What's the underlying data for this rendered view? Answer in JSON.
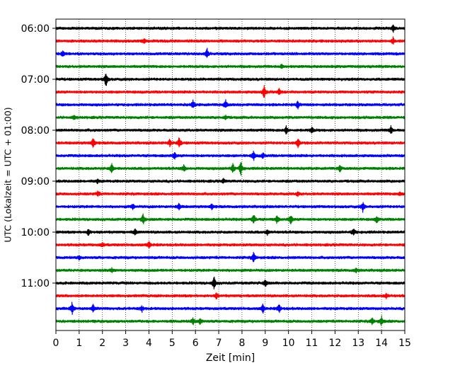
{
  "chart_data": {
    "type": "line",
    "title": "",
    "xlabel": "Zeit  [min]",
    "ylabel": "UTC (Lokalzeit = UTC + 01:00)",
    "xlim": [
      0,
      15
    ],
    "x_ticks": [
      0,
      1,
      2,
      3,
      4,
      5,
      6,
      7,
      8,
      9,
      10,
      11,
      12,
      13,
      14,
      15
    ],
    "y_tick_labels": [
      "06:00",
      "07:00",
      "08:00",
      "09:00",
      "10:00",
      "11:00"
    ],
    "grid": "vertical dotted lines at each minute",
    "legend": "none",
    "trace_colors": [
      "#000000",
      "#ff0000",
      "#0000ff",
      "#008000"
    ],
    "traces": [
      {
        "start": "06:00",
        "events": [
          {
            "t": 14.5,
            "amp": 0.6
          }
        ]
      },
      {
        "start": "06:15",
        "events": [
          {
            "t": 3.8,
            "amp": 0.3
          },
          {
            "t": 14.5,
            "amp": 0.5
          }
        ]
      },
      {
        "start": "06:30",
        "events": [
          {
            "t": 0.3,
            "amp": 0.4
          },
          {
            "t": 6.5,
            "amp": 0.7
          }
        ]
      },
      {
        "start": "06:45",
        "events": [
          {
            "t": 9.7,
            "amp": 0.3
          }
        ]
      },
      {
        "start": "07:00",
        "events": [
          {
            "t": 2.15,
            "amp": 1.2
          }
        ]
      },
      {
        "start": "07:15",
        "events": [
          {
            "t": 8.95,
            "amp": 1.0
          },
          {
            "t": 9.6,
            "amp": 0.5
          }
        ]
      },
      {
        "start": "07:30",
        "events": [
          {
            "t": 5.9,
            "amp": 0.6
          },
          {
            "t": 7.3,
            "amp": 0.6
          },
          {
            "t": 10.4,
            "amp": 0.6
          }
        ]
      },
      {
        "start": "07:45",
        "events": [
          {
            "t": 0.8,
            "amp": 0.3
          },
          {
            "t": 7.3,
            "amp": 0.3
          }
        ]
      },
      {
        "start": "08:00",
        "events": [
          {
            "t": 9.9,
            "amp": 0.6
          },
          {
            "t": 11.0,
            "amp": 0.5
          },
          {
            "t": 14.4,
            "amp": 0.6
          }
        ]
      },
      {
        "start": "08:15",
        "events": [
          {
            "t": 1.6,
            "amp": 0.8
          },
          {
            "t": 4.9,
            "amp": 0.6
          },
          {
            "t": 5.3,
            "amp": 0.8
          },
          {
            "t": 10.4,
            "amp": 0.8
          }
        ]
      },
      {
        "start": "08:30",
        "events": [
          {
            "t": 5.1,
            "amp": 0.5
          },
          {
            "t": 8.5,
            "amp": 0.7
          },
          {
            "t": 8.9,
            "amp": 0.4
          }
        ]
      },
      {
        "start": "08:45",
        "events": [
          {
            "t": 2.4,
            "amp": 0.7
          },
          {
            "t": 5.5,
            "amp": 0.5
          },
          {
            "t": 7.6,
            "amp": 0.8
          },
          {
            "t": 7.95,
            "amp": 1.1
          },
          {
            "t": 12.2,
            "amp": 0.5
          }
        ]
      },
      {
        "start": "09:00",
        "events": [
          {
            "t": 1.8,
            "amp": 0.3
          },
          {
            "t": 7.2,
            "amp": 0.3
          }
        ]
      },
      {
        "start": "09:15",
        "events": [
          {
            "t": 1.8,
            "amp": 0.4
          },
          {
            "t": 10.4,
            "amp": 0.3
          },
          {
            "t": 14.8,
            "amp": 0.3
          }
        ]
      },
      {
        "start": "09:30",
        "events": [
          {
            "t": 3.3,
            "amp": 0.4
          },
          {
            "t": 5.3,
            "amp": 0.5
          },
          {
            "t": 6.7,
            "amp": 0.4
          },
          {
            "t": 13.2,
            "amp": 0.7
          }
        ]
      },
      {
        "start": "09:45",
        "events": [
          {
            "t": 3.75,
            "amp": 0.8
          },
          {
            "t": 8.5,
            "amp": 0.8
          },
          {
            "t": 9.5,
            "amp": 0.6
          },
          {
            "t": 10.1,
            "amp": 0.7
          },
          {
            "t": 13.8,
            "amp": 0.5
          }
        ]
      },
      {
        "start": "10:00",
        "events": [
          {
            "t": 1.4,
            "amp": 0.5
          },
          {
            "t": 3.4,
            "amp": 0.5
          },
          {
            "t": 9.1,
            "amp": 0.4
          },
          {
            "t": 12.8,
            "amp": 0.6
          }
        ]
      },
      {
        "start": "10:15",
        "events": [
          {
            "t": 2.0,
            "amp": 0.3
          },
          {
            "t": 4.0,
            "amp": 0.6
          }
        ]
      },
      {
        "start": "10:30",
        "events": [
          {
            "t": 8.5,
            "amp": 0.8
          },
          {
            "t": 1.0,
            "amp": 0.3
          }
        ]
      },
      {
        "start": "10:45",
        "events": [
          {
            "t": 2.4,
            "amp": 0.3
          },
          {
            "t": 12.9,
            "amp": 0.3
          }
        ]
      },
      {
        "start": "11:00",
        "events": [
          {
            "t": 6.8,
            "amp": 1.0
          },
          {
            "t": 9.0,
            "amp": 0.6
          }
        ]
      },
      {
        "start": "11:15",
        "events": [
          {
            "t": 6.9,
            "amp": 0.4
          },
          {
            "t": 14.2,
            "amp": 0.4
          }
        ]
      },
      {
        "start": "11:30",
        "events": [
          {
            "t": 0.7,
            "amp": 1.0
          },
          {
            "t": 1.6,
            "amp": 0.6
          },
          {
            "t": 8.9,
            "amp": 0.7
          },
          {
            "t": 9.6,
            "amp": 0.7
          },
          {
            "t": 3.7,
            "amp": 0.4
          }
        ]
      },
      {
        "start": "11:45",
        "events": [
          {
            "t": 5.9,
            "amp": 0.5
          },
          {
            "t": 6.2,
            "amp": 0.5
          },
          {
            "t": 13.6,
            "amp": 0.5
          },
          {
            "t": 14.0,
            "amp": 0.7
          }
        ]
      }
    ]
  }
}
